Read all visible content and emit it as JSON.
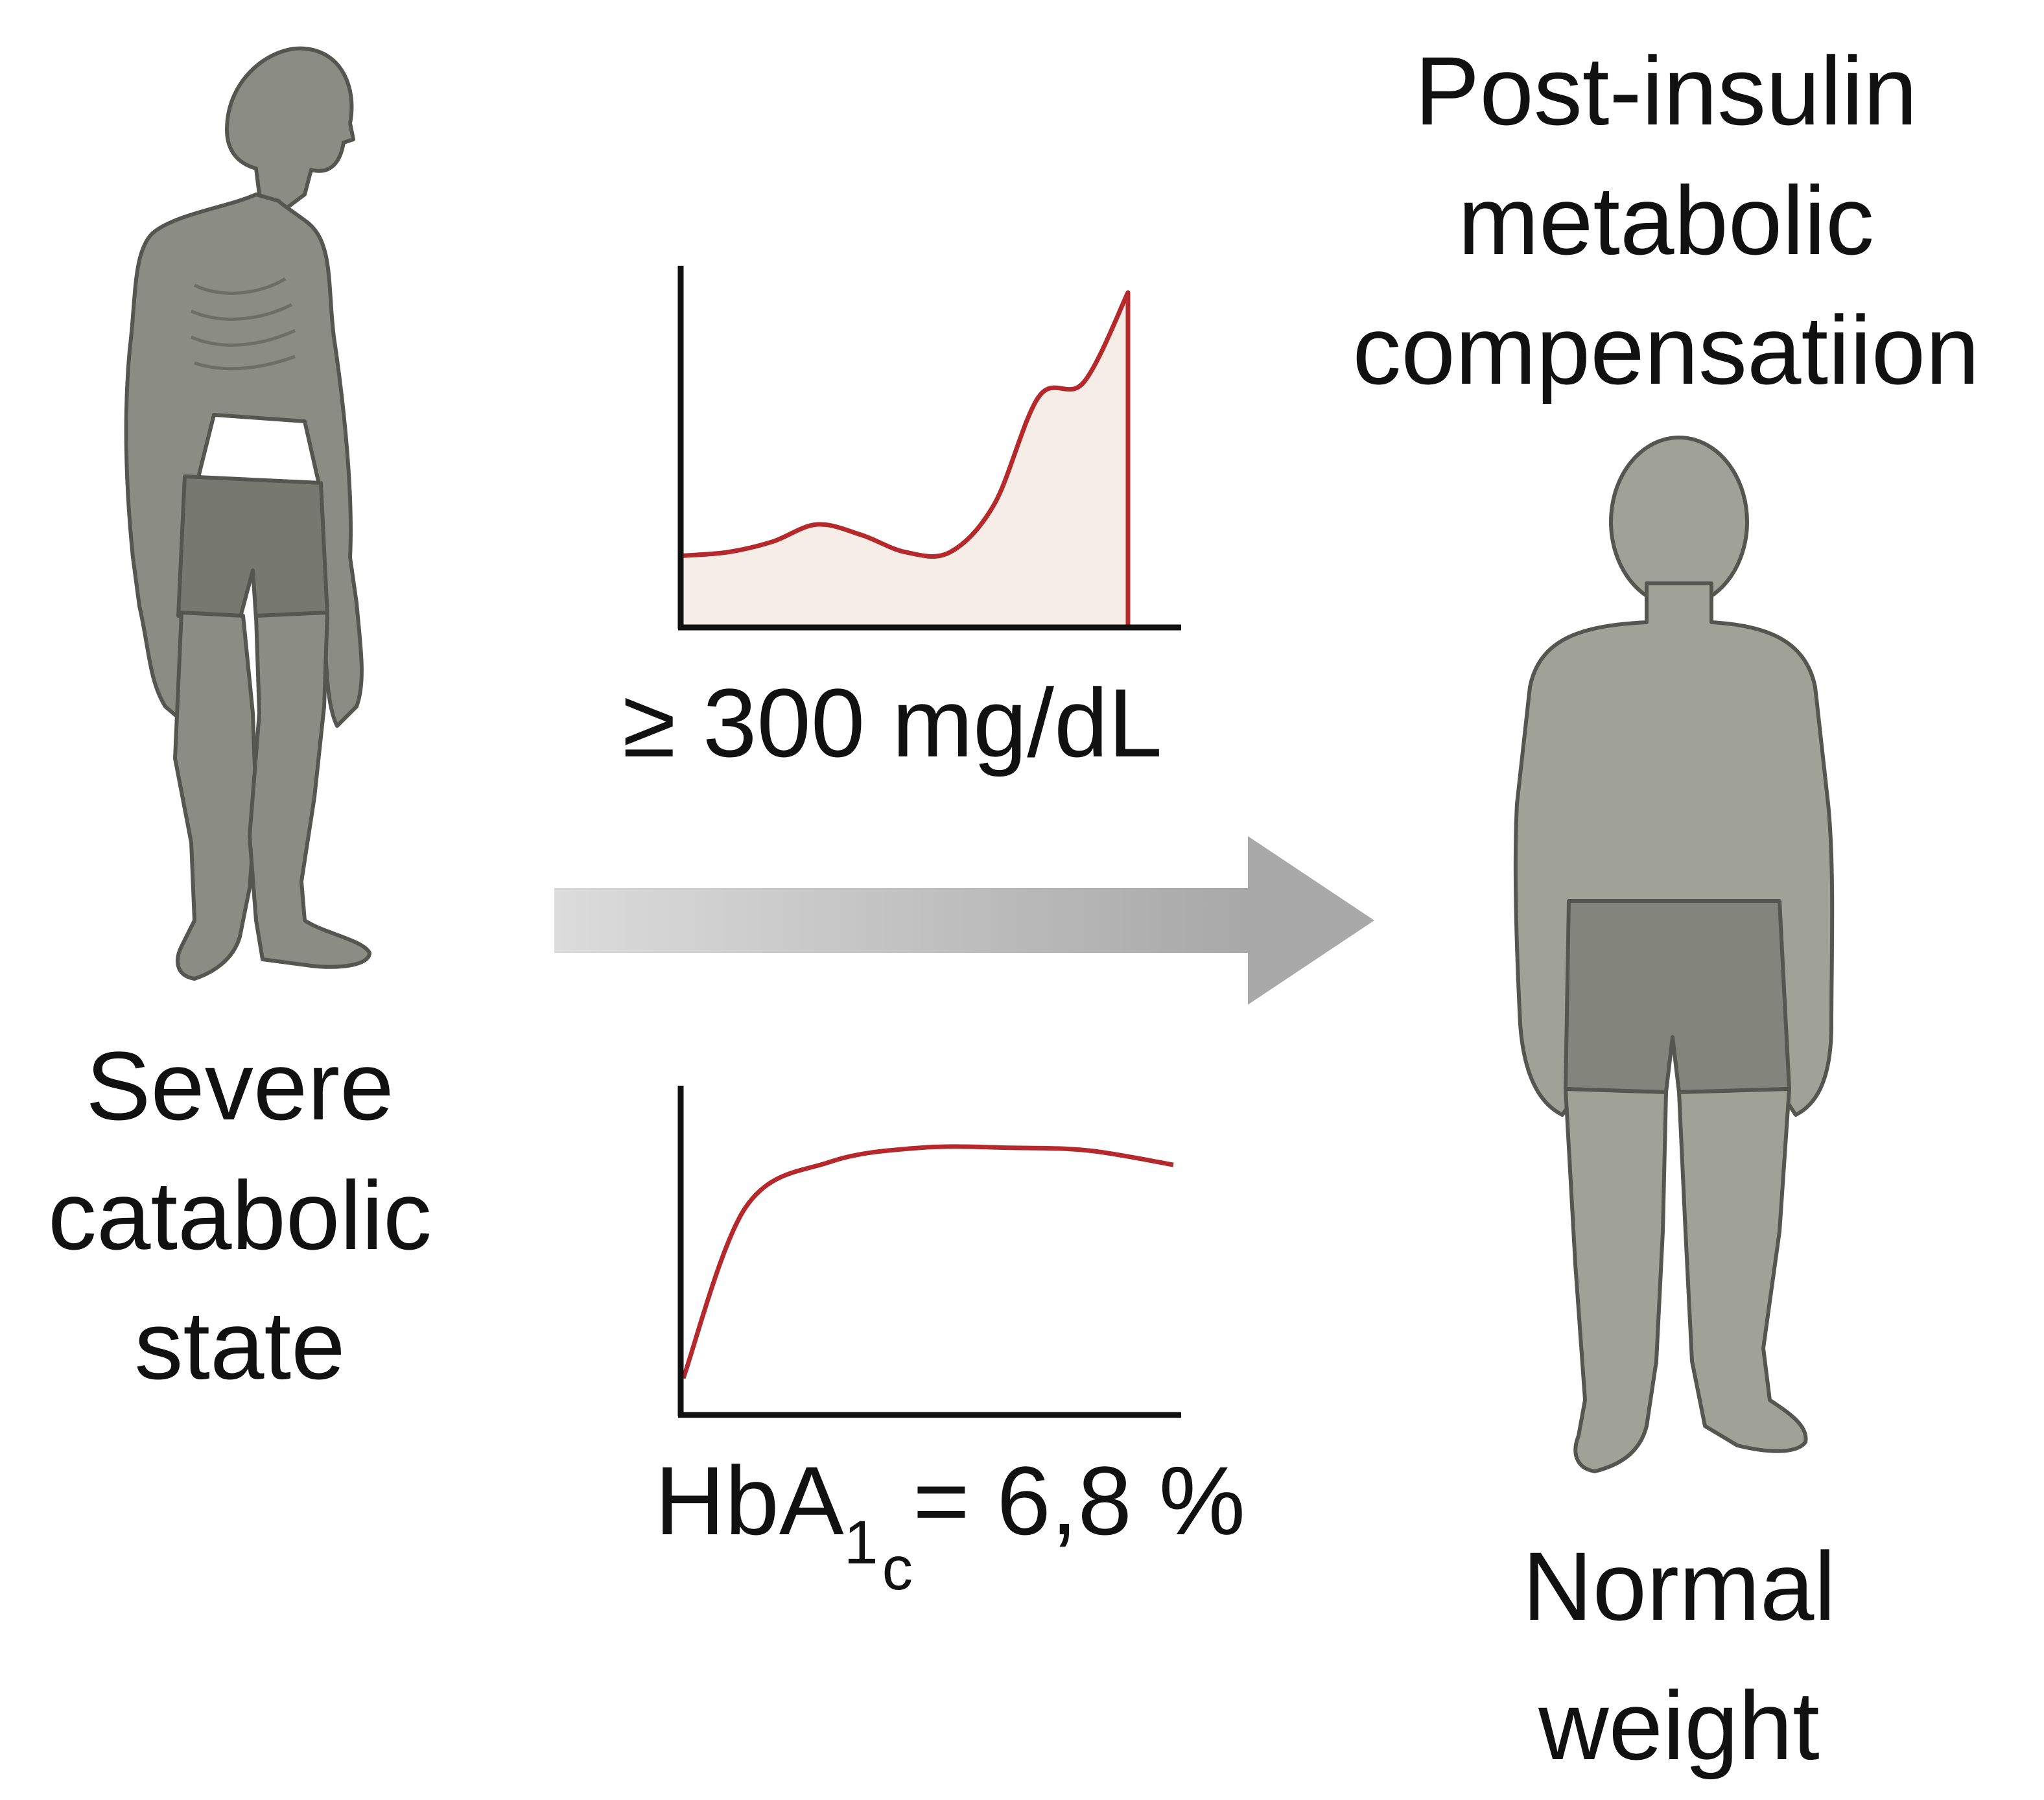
{
  "left_figure": {
    "label_lines": [
      "Severe",
      "catabolic",
      "state"
    ]
  },
  "right_figure": {
    "title_lines": [
      "Post-insulin",
      "metabolic",
      "compensatiion"
    ],
    "label_lines": [
      "Normal",
      "weight"
    ]
  },
  "glucose_chart": {
    "label": "≥ 300 mg/dL"
  },
  "hba1c_chart": {
    "label_main": "HbA",
    "label_sub1": "1",
    "label_sub2": "c",
    "label_rest": "= 6,8 %"
  },
  "colors": {
    "figure_body": "#8b8c84",
    "figure_outline": "#55564f",
    "figure_shorts": "#777870",
    "curve": "#b5282b",
    "curve_fill": "#f6eee6",
    "axis": "#111111",
    "arrow_light": "#d9d9d9",
    "arrow_dark": "#a9a9a9"
  },
  "chart_data": [
    {
      "type": "area",
      "series": [
        {
          "values": [
            0.2,
            0.21,
            0.24,
            0.29,
            0.26,
            0.21,
            0.21,
            0.35,
            0.66,
            0.7,
            0.96
          ]
        }
      ]
    },
    {
      "type": "line",
      "series": [
        {
          "values": [
            0.12,
            0.72,
            0.88,
            0.93,
            0.93,
            0.92,
            0.87
          ]
        }
      ]
    }
  ]
}
